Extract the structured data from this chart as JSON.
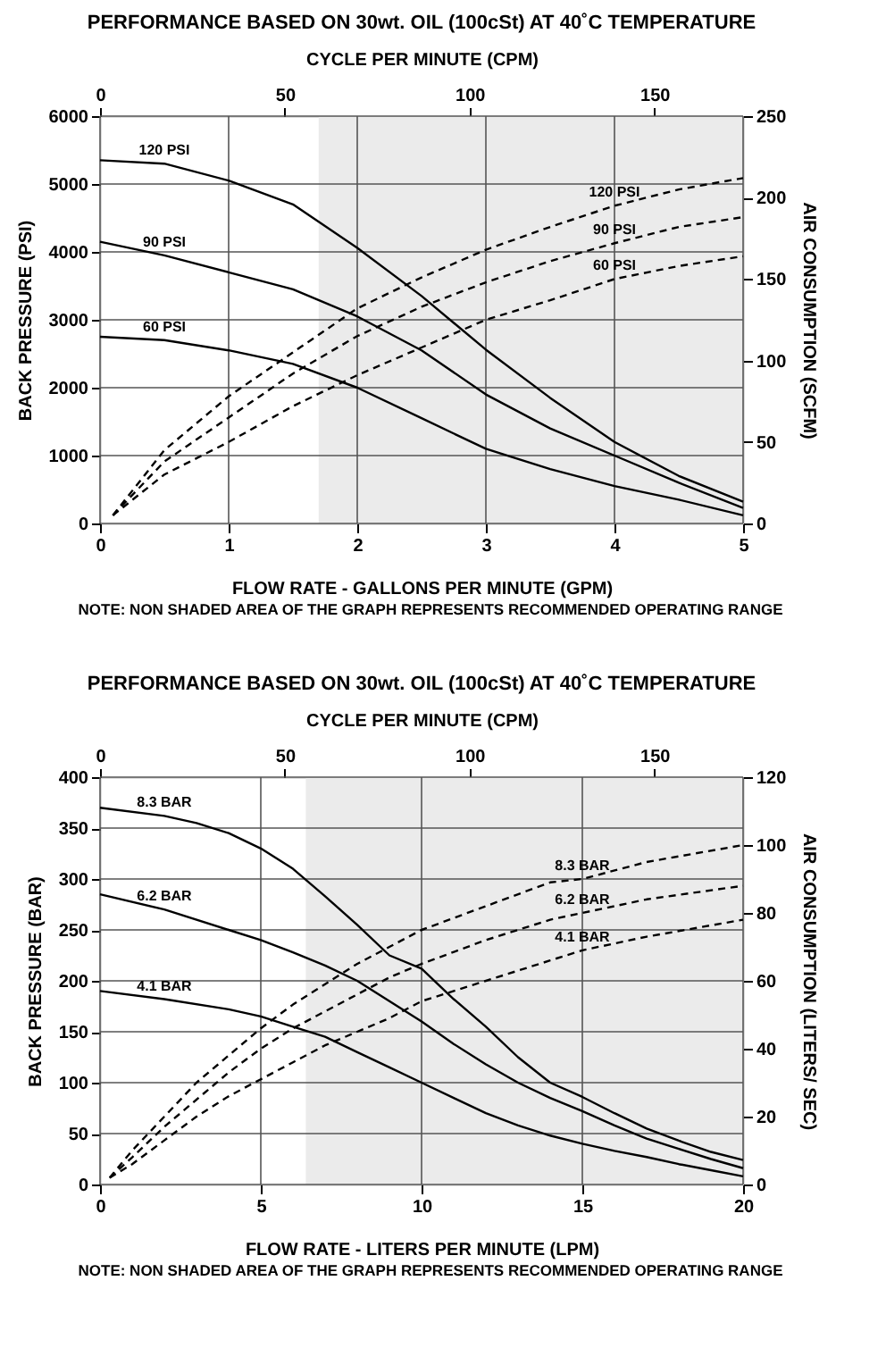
{
  "chart_data": [
    {
      "type": "line",
      "title": "PERFORMANCE BASED ON 30wt. OIL (100cSt) AT 40˚C TEMPERATURE",
      "x2label": "CYCLE PER MINUTE (CPM)",
      "xlabel": "FLOW RATE - GALLONS PER MINUTE (GPM)",
      "ylabel": "BACK PRESSURE  (PSI)",
      "y2label": "AIR CONSUMPTION  (SCFM)",
      "annotations": [
        "NOTE:  NON SHADED AREA OF THE GRAPH REPRESENTS RECOMMENDED OPERATING RANGE"
      ],
      "xlim": [
        0,
        5
      ],
      "xticks": [
        0,
        1,
        2,
        3,
        4,
        5
      ],
      "ylim": [
        0,
        6000
      ],
      "yticks": [
        0,
        1000,
        2000,
        3000,
        4000,
        5000,
        6000
      ],
      "y2lim": [
        0,
        250
      ],
      "y2ticks": [
        0,
        50,
        100,
        150,
        200,
        250
      ],
      "x2lim": [
        0,
        174
      ],
      "x2ticks": [
        0,
        50,
        100,
        150
      ],
      "grid": true,
      "marker": "none",
      "bands": [
        {
          "axis": "x",
          "from": 1.7,
          "to": 5,
          "color": "#ebebeb"
        }
      ],
      "series": [
        {
          "name": "120 PSI",
          "color": "#000000",
          "line_style": "solid",
          "x": [
            0,
            0.5,
            1,
            1.5,
            2,
            2.5,
            3,
            3.5,
            4,
            4.5,
            5
          ],
          "values": [
            5350,
            5300,
            5050,
            4700,
            4060,
            3350,
            2560,
            1850,
            1200,
            700,
            320
          ]
        },
        {
          "name": "90 PSI",
          "color": "#000000",
          "line_style": "solid",
          "x": [
            0,
            0.5,
            1,
            1.5,
            2,
            2.5,
            3,
            3.5,
            4,
            4.5,
            5
          ],
          "values": [
            4150,
            3950,
            3700,
            3450,
            3050,
            2550,
            1900,
            1400,
            1000,
            600,
            230
          ]
        },
        {
          "name": "60 PSI",
          "color": "#000000",
          "line_style": "solid",
          "x": [
            0,
            0.5,
            1,
            1.5,
            2,
            2.5,
            3,
            3.5,
            4,
            4.5,
            5
          ],
          "values": [
            2750,
            2700,
            2550,
            2350,
            2000,
            1550,
            1100,
            800,
            550,
            350,
            120
          ]
        },
        {
          "name": "120 PSI",
          "color": "#000000",
          "line_style": "dashed",
          "axis": "y2",
          "x": [
            0.1,
            0.5,
            1,
            1.5,
            2,
            2.5,
            3,
            3.5,
            4,
            4.5,
            5
          ],
          "values": [
            5,
            45,
            78,
            105,
            132,
            151,
            168,
            182,
            195,
            205,
            212
          ]
        },
        {
          "name": "90 PSI",
          "color": "#000000",
          "line_style": "dashed",
          "axis": "y2",
          "x": [
            0.1,
            0.5,
            1,
            1.5,
            2,
            2.5,
            3,
            3.5,
            4,
            4.5,
            5
          ],
          "values": [
            5,
            38,
            65,
            92,
            115,
            133,
            148,
            161,
            172,
            182,
            188
          ]
        },
        {
          "name": "60 PSI",
          "color": "#000000",
          "line_style": "dashed",
          "axis": "y2",
          "x": [
            0.1,
            0.5,
            1,
            1.5,
            2,
            2.5,
            3,
            3.5,
            4,
            4.5,
            5
          ],
          "values": [
            5,
            30,
            50,
            72,
            91,
            108,
            125,
            137,
            150,
            158,
            164
          ]
        }
      ]
    },
    {
      "type": "line",
      "title": "PERFORMANCE BASED ON 30wt. OIL (100cSt) AT 40˚C TEMPERATURE",
      "x2label": "CYCLE PER MINUTE (CPM)",
      "xlabel": "FLOW RATE - LITERS PER MINUTE (LPM)",
      "ylabel": "BACK PRESSURE (BAR)",
      "y2label": "AIR CONSUMPTION (LITERS/ SEC)",
      "annotations": [
        "NOTE: NON SHADED AREA OF THE GRAPH REPRESENTS RECOMMENDED OPERATING RANGE"
      ],
      "xlim": [
        0,
        20
      ],
      "xticks": [
        0,
        5,
        10,
        15,
        20
      ],
      "ylim": [
        0,
        400
      ],
      "yticks": [
        0,
        50,
        100,
        150,
        200,
        250,
        300,
        350,
        400
      ],
      "y2lim": [
        0,
        120
      ],
      "y2ticks": [
        0,
        20,
        40,
        60,
        80,
        100,
        120
      ],
      "x2lim": [
        0,
        174
      ],
      "x2ticks": [
        0,
        50,
        100,
        150
      ],
      "grid": true,
      "marker": "none",
      "bands": [
        {
          "axis": "x",
          "from": 6.4,
          "to": 20,
          "color": "#ebebeb"
        }
      ],
      "series": [
        {
          "name": "8.3 BAR",
          "color": "#000000",
          "line_style": "solid",
          "x": [
            0,
            2,
            3,
            4,
            5,
            6,
            7,
            8,
            9,
            10,
            11,
            12,
            13,
            14,
            15,
            16,
            17,
            18,
            19,
            20
          ],
          "values": [
            370,
            362,
            355,
            345,
            330,
            310,
            283,
            255,
            225,
            212,
            182,
            155,
            125,
            100,
            86,
            70,
            55,
            43,
            32,
            24
          ]
        },
        {
          "name": "6.2 BAR",
          "color": "#000000",
          "line_style": "solid",
          "x": [
            0,
            2,
            4,
            5,
            6,
            7,
            8,
            9,
            10,
            11,
            12,
            13,
            14,
            15,
            16,
            17,
            18,
            19,
            20
          ],
          "values": [
            285,
            270,
            250,
            240,
            228,
            215,
            200,
            180,
            160,
            138,
            118,
            100,
            85,
            72,
            58,
            45,
            35,
            25,
            16
          ]
        },
        {
          "name": "4.1 BAR",
          "color": "#000000",
          "line_style": "solid",
          "x": [
            0,
            2,
            4,
            5,
            6,
            7,
            8,
            9,
            10,
            11,
            12,
            13,
            14,
            15,
            16,
            17,
            18,
            19,
            20
          ],
          "values": [
            190,
            182,
            172,
            165,
            155,
            145,
            130,
            115,
            100,
            85,
            70,
            58,
            48,
            40,
            33,
            27,
            20,
            14,
            8
          ]
        },
        {
          "name": "8.3 BAR",
          "color": "#000000",
          "line_style": "dashed",
          "axis": "y2",
          "x": [
            0.3,
            1,
            2,
            3,
            4,
            5,
            6,
            7,
            8,
            9,
            10,
            12,
            14,
            15,
            17,
            20
          ],
          "values": [
            2,
            10,
            20,
            30,
            38,
            46,
            53,
            59,
            65,
            70,
            75,
            82,
            89,
            90,
            95,
            100
          ]
        },
        {
          "name": "6.2 BAR",
          "color": "#000000",
          "line_style": "dashed",
          "axis": "y2",
          "x": [
            0.3,
            1,
            2,
            3,
            4,
            5,
            6,
            7,
            8,
            9,
            10,
            12,
            14,
            15,
            17,
            20
          ],
          "values": [
            2,
            8,
            17,
            25,
            33,
            40,
            46,
            51,
            56,
            61,
            65,
            72,
            78,
            80,
            84,
            88
          ]
        },
        {
          "name": "4.1 BAR",
          "color": "#000000",
          "line_style": "dashed",
          "axis": "y2",
          "x": [
            0.3,
            1,
            2,
            3,
            4,
            5,
            6,
            7,
            8,
            9,
            10,
            12,
            14,
            15,
            17,
            20
          ],
          "values": [
            2,
            6,
            13,
            20,
            26,
            31,
            36,
            41,
            45,
            49,
            54,
            60,
            66,
            69,
            73,
            78
          ]
        }
      ]
    }
  ]
}
